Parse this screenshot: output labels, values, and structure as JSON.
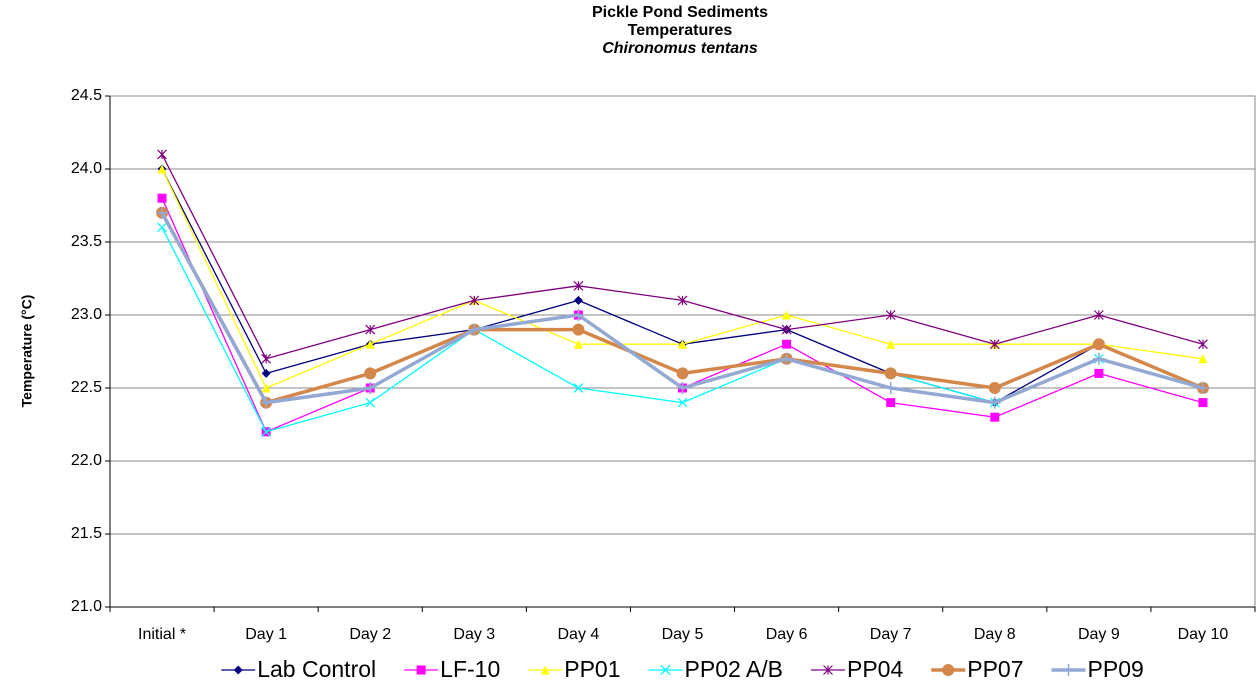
{
  "chart_data": {
    "type": "line",
    "title": [
      "Pickle Pond Sediments",
      "Temperatures",
      "Chironomus tentans"
    ],
    "y_label": "Temperature (°C)",
    "categories": [
      "Initial *",
      "Day 1",
      "Day 2",
      "Day 3",
      "Day 4",
      "Day 5",
      "Day 6",
      "Day 7",
      "Day 8",
      "Day 9",
      "Day 10"
    ],
    "series": [
      {
        "name": "Lab Control",
        "color": "#000080",
        "marker": "diamond",
        "width": 1.3,
        "values": [
          24.0,
          22.6,
          22.8,
          22.9,
          23.1,
          22.8,
          22.9,
          22.6,
          22.4,
          22.8,
          22.5
        ]
      },
      {
        "name": "LF-10",
        "color": "#ff00ff",
        "marker": "square",
        "width": 1.3,
        "values": [
          23.8,
          22.2,
          22.5,
          22.9,
          23.0,
          22.5,
          22.8,
          22.4,
          22.3,
          22.6,
          22.4
        ]
      },
      {
        "name": "PP01",
        "color": "#ffff00",
        "marker": "triangle",
        "width": 1.3,
        "values": [
          24.0,
          22.5,
          22.8,
          23.1,
          22.8,
          22.8,
          23.0,
          22.8,
          22.8,
          22.8,
          22.7
        ]
      },
      {
        "name": "PP02 A/B",
        "color": "#00ffff",
        "marker": "x",
        "width": 1.3,
        "values": [
          23.6,
          22.2,
          22.4,
          22.9,
          22.5,
          22.4,
          22.7,
          22.6,
          22.4,
          22.7,
          22.5
        ]
      },
      {
        "name": "PP04",
        "color": "#800080",
        "marker": "star",
        "width": 1.3,
        "values": [
          24.1,
          22.7,
          22.9,
          23.1,
          23.2,
          23.1,
          22.9,
          23.0,
          22.8,
          23.0,
          22.8
        ]
      },
      {
        "name": "PP07",
        "color": "#d4874a",
        "marker": "circle",
        "width": 3.5,
        "values": [
          23.7,
          22.4,
          22.6,
          22.9,
          22.9,
          22.6,
          22.7,
          22.6,
          22.5,
          22.8,
          22.5
        ]
      },
      {
        "name": "PP09",
        "color": "#93a9d3",
        "marker": "plus",
        "width": 3.5,
        "values": [
          23.7,
          22.4,
          22.5,
          22.9,
          23.0,
          22.5,
          22.7,
          22.5,
          22.4,
          22.7,
          22.5
        ]
      }
    ],
    "ylim": [
      21,
      24.5
    ],
    "yticks": [
      {
        "value": 21,
        "label": "21.0"
      },
      21.5,
      {
        "value": 22,
        "label": "22.0"
      },
      22.5,
      {
        "value": 23,
        "label": "23.0"
      },
      23.5,
      {
        "value": 24,
        "label": "24.0"
      },
      24.5
    ],
    "grid": true,
    "legend": "bottom"
  }
}
